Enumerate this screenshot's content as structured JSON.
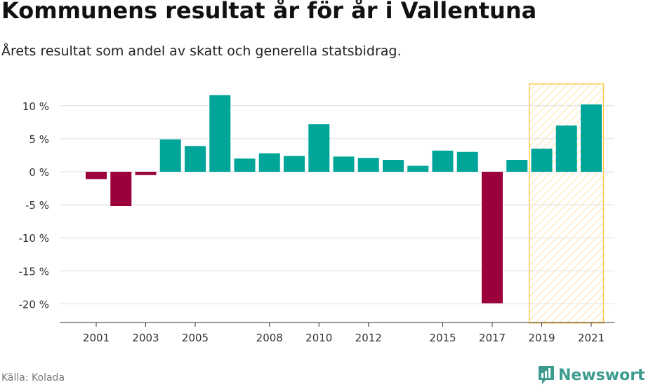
{
  "header": {
    "title": "Kommunens resultat år för år i Vallentuna",
    "subtitle": "Årets resultat som andel av skatt och generella statsbidrag."
  },
  "footer": {
    "source": "Källa: Kolada",
    "brand": "Newsworthy"
  },
  "colors": {
    "positive": "#00a59a",
    "negative": "#9b003c",
    "highlight": "#ffc94d"
  },
  "chart_data": {
    "type": "bar",
    "title": "Kommunens resultat år för år i Vallentuna",
    "ylabel": "",
    "xlabel": "",
    "categories": [
      2001,
      2002,
      2003,
      2004,
      2005,
      2006,
      2007,
      2008,
      2009,
      2010,
      2011,
      2012,
      2013,
      2014,
      2015,
      2016,
      2017,
      2018,
      2019,
      2020,
      2021
    ],
    "values": [
      -1.1,
      -5.2,
      -0.5,
      4.9,
      3.9,
      11.6,
      2.0,
      2.8,
      2.4,
      7.2,
      2.3,
      2.1,
      1.8,
      0.9,
      3.2,
      3.0,
      -19.9,
      1.8,
      3.5,
      7.0,
      10.2
    ],
    "ylim": [
      -22.9,
      13.3
    ],
    "yticks": [
      10,
      5,
      0,
      -5,
      -10,
      -15,
      -20
    ],
    "ytick_labels": [
      "10 %",
      "5 %",
      "0 %",
      "-5 %",
      "-10 %",
      "-15 %",
      "-20 %"
    ],
    "xticks": [
      2001,
      2003,
      2005,
      2008,
      2010,
      2012,
      2015,
      2017,
      2019,
      2021
    ],
    "xtick_labels": [
      "2001",
      "2003",
      "2005",
      "2008",
      "2010",
      "2012",
      "2015",
      "2017",
      "2019",
      "2021"
    ],
    "highlight_range": [
      2019,
      2021
    ],
    "grid": true
  }
}
